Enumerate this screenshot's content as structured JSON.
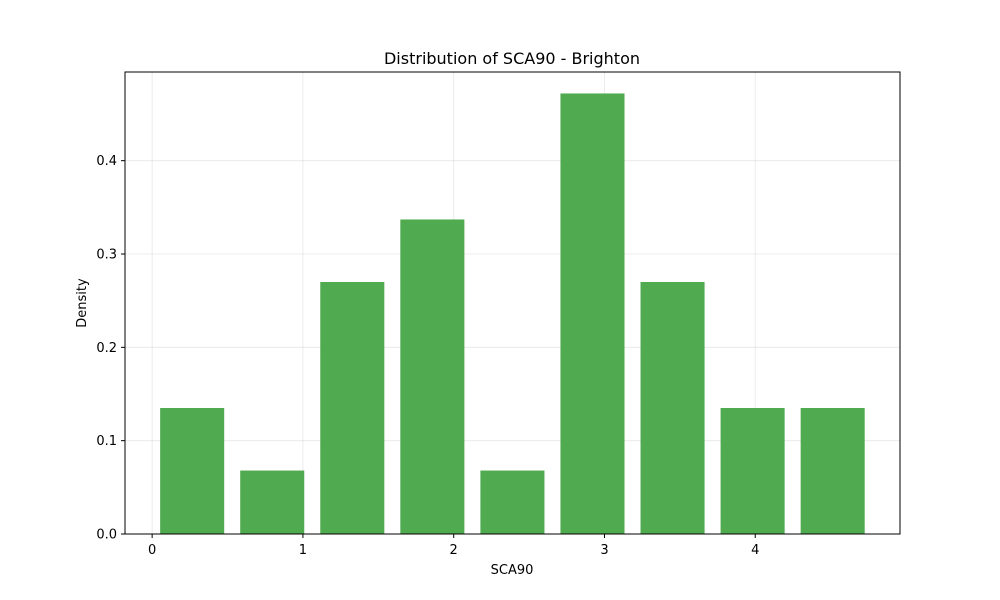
{
  "chart_data": {
    "type": "bar",
    "title": "Distribution of SCA90 - Brighton",
    "xlabel": "SCA90",
    "ylabel": "Density",
    "bin_edges": [
      0.0,
      0.531,
      1.062,
      1.593,
      2.124,
      2.655,
      3.186,
      3.717,
      4.248,
      4.779
    ],
    "values": [
      0.135,
      0.068,
      0.27,
      0.337,
      0.068,
      0.472,
      0.27,
      0.135,
      0.135
    ],
    "xlim": [
      -0.18,
      4.96
    ],
    "ylim": [
      0.0,
      0.495
    ],
    "xticks": [
      0,
      1,
      2,
      3,
      4
    ],
    "xtick_labels": [
      "0",
      "1",
      "2",
      "3",
      "4"
    ],
    "yticks": [
      0.0,
      0.1,
      0.2,
      0.3,
      0.4
    ],
    "ytick_labels": [
      "0.0",
      "0.1",
      "0.2",
      "0.3",
      "0.4"
    ],
    "grid": true,
    "bar_color": "#4ca84c"
  }
}
